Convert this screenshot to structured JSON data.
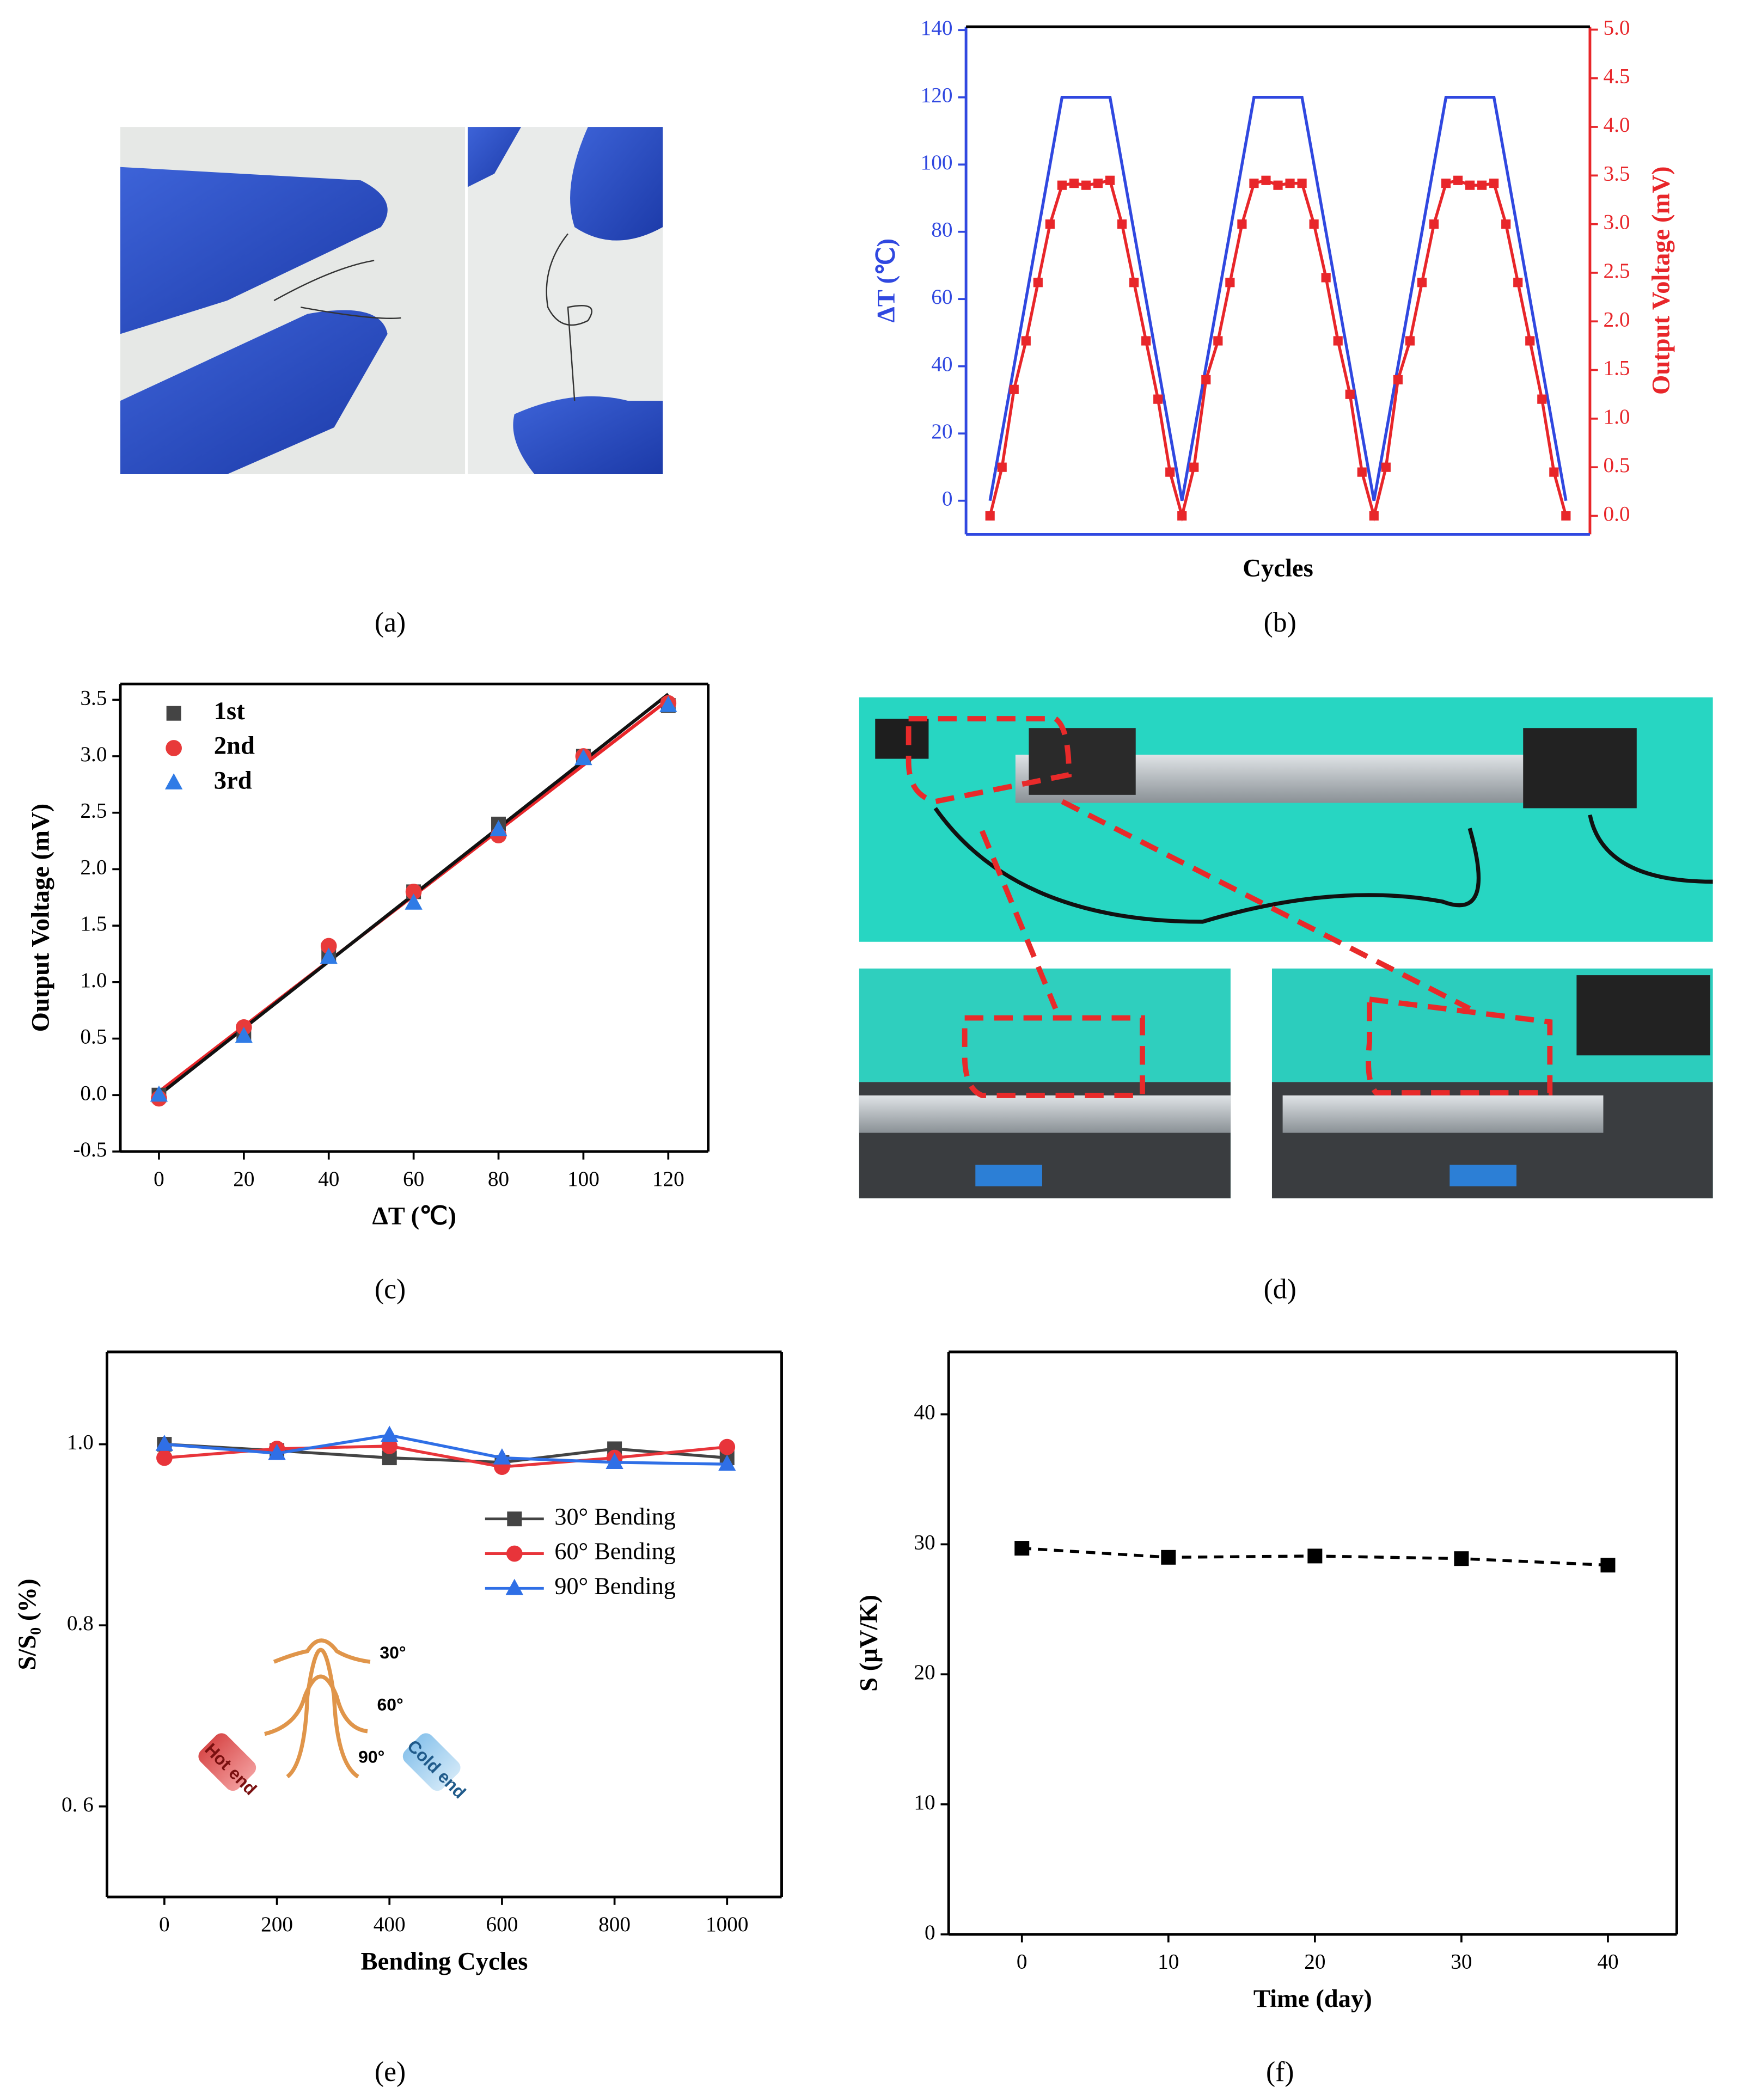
{
  "panel_labels": [
    "(a)",
    "(b)",
    "(c)",
    "(d)",
    "(e)",
    "(f)"
  ],
  "chart_data": [
    {
      "type": "line",
      "xlabel": "Cycles",
      "ylabel": "ΔT (℃)",
      "y2label": "Output Voltage (mV)",
      "xlim": [
        -2,
        50
      ],
      "ylim": [
        -10,
        141
      ],
      "y2lim": [
        -0.19,
        5.03
      ],
      "yticks": [
        0,
        20,
        40,
        60,
        80,
        100,
        120,
        140
      ],
      "y2ticks": [
        {
          "value": 0,
          "label": "0.0"
        },
        0.5,
        {
          "value": 1,
          "label": "1.0"
        },
        1.5,
        {
          "value": 2,
          "label": "2.0"
        },
        2.5,
        {
          "value": 3,
          "label": "3.0"
        },
        3.5,
        {
          "value": 4,
          "label": "4.0"
        },
        4.5,
        {
          "value": 5,
          "label": "5.0"
        }
      ],
      "ycolor": "#3048e0",
      "y2color": "#e8262a",
      "series": [
        {
          "color": "#3048e0",
          "x": [
            0,
            6,
            10,
            16,
            22,
            26,
            32,
            38,
            42,
            48
          ],
          "values": [
            0,
            120,
            120,
            0,
            120,
            120,
            0,
            120,
            120,
            0
          ]
        },
        {
          "color": "#e8262a",
          "axis": "y2",
          "marker": "square",
          "x": [
            0,
            1,
            2,
            3,
            4,
            5,
            6,
            7,
            8,
            9,
            10,
            11,
            12,
            13,
            14,
            15,
            16,
            17,
            18,
            19,
            20,
            21,
            22,
            23,
            24,
            25,
            26,
            27,
            28,
            29,
            30,
            31,
            32,
            33,
            34,
            35,
            36,
            37,
            38,
            39,
            40,
            41,
            42,
            43,
            44,
            45,
            46,
            47,
            48
          ],
          "values": [
            0,
            0.5,
            1.3,
            1.8,
            2.4,
            3.0,
            3.4,
            3.42,
            3.4,
            3.42,
            3.45,
            3.0,
            2.4,
            1.8,
            1.2,
            0.45,
            0,
            0.5,
            1.4,
            1.8,
            2.4,
            3.0,
            3.42,
            3.45,
            3.4,
            3.42,
            3.42,
            3.0,
            2.45,
            1.8,
            1.25,
            0.45,
            0,
            0.5,
            1.4,
            1.8,
            2.4,
            3.0,
            3.42,
            3.45,
            3.4,
            3.4,
            3.42,
            3.0,
            2.4,
            1.8,
            1.2,
            0.45,
            0
          ]
        }
      ]
    },
    {
      "type": "scatter",
      "xlabel": "ΔT (℃)",
      "ylabel": "Output Voltage (mV)",
      "xlim": [
        -9.1,
        129.4
      ],
      "ylim": [
        -0.5,
        3.64
      ],
      "xticks": [
        0,
        20,
        40,
        60,
        80,
        100,
        120
      ],
      "yticks": [
        -0.5,
        {
          "value": 0,
          "label": "0.0"
        },
        0.5,
        {
          "value": 1,
          "label": "1.0"
        },
        1.5,
        {
          "value": 2,
          "label": "2.0"
        },
        2.5,
        {
          "value": 3,
          "label": "3.0"
        },
        3.5
      ],
      "legend": "upper left",
      "series": [
        {
          "name": "1st",
          "color": "#444444",
          "marker": "square",
          "x": [
            0,
            20,
            40,
            60,
            80,
            100,
            120
          ],
          "values": [
            0,
            0.55,
            1.25,
            1.8,
            2.4,
            3.0,
            3.45
          ]
        },
        {
          "name": "2nd",
          "color": "#e83a3a",
          "marker": "circle",
          "x": [
            0,
            20,
            40,
            60,
            80,
            100,
            120
          ],
          "values": [
            -0.03,
            0.6,
            1.32,
            1.8,
            2.3,
            3.0,
            3.47
          ]
        },
        {
          "name": "3rd",
          "color": "#2f7be6",
          "marker": "triangle",
          "x": [
            0,
            20,
            40,
            60,
            80,
            100,
            120
          ],
          "values": [
            0,
            0.52,
            1.22,
            1.7,
            2.35,
            2.98,
            3.45
          ]
        }
      ],
      "fit_lines": [
        {
          "color": "#e8262a",
          "x": [
            0,
            120
          ],
          "values": [
            0.03,
            3.5
          ]
        },
        {
          "color": "#111111",
          "x": [
            0,
            120
          ],
          "values": [
            0,
            3.55
          ]
        }
      ]
    },
    {
      "type": "line",
      "xlabel": "Bending Cycles",
      "ylabel": "S/S₀ (%)",
      "xlim": [
        -102,
        1097
      ],
      "ylim": [
        0.5,
        1.102
      ],
      "xticks": [
        0,
        200,
        400,
        600,
        800,
        1000
      ],
      "yticks": [
        {
          "value": 0.6,
          "label": "0. 6"
        },
        0.8,
        {
          "value": 1,
          "label": "1.0"
        }
      ],
      "legend": "center right",
      "annotations": [
        "30°",
        "60°",
        "90°",
        "Hot end",
        "Cold end"
      ],
      "series": [
        {
          "name": "30° Bending",
          "color": "#444444",
          "marker": "square",
          "x": [
            0,
            200,
            400,
            600,
            800,
            1000
          ],
          "values": [
            1.0,
            0.993,
            0.985,
            0.98,
            0.995,
            0.985
          ]
        },
        {
          "name": "60° Bending",
          "color": "#e8343a",
          "marker": "circle",
          "x": [
            0,
            200,
            400,
            600,
            800,
            1000
          ],
          "values": [
            0.985,
            0.995,
            0.998,
            0.975,
            0.985,
            0.997
          ]
        },
        {
          "name": "90° Bending",
          "color": "#2f6fe6",
          "marker": "triangle",
          "x": [
            0,
            200,
            400,
            600,
            800,
            1000
          ],
          "values": [
            1.0,
            0.99,
            1.01,
            0.985,
            0.98,
            0.978
          ]
        }
      ]
    },
    {
      "type": "line",
      "xlabel": "Time (day)",
      "ylabel": "S (μV/K)",
      "xlim": [
        -5,
        44.7
      ],
      "ylim": [
        0,
        44.8
      ],
      "xticks": [
        0,
        10,
        20,
        30,
        40
      ],
      "yticks": [
        0,
        10,
        20,
        30,
        40
      ],
      "series": [
        {
          "color": "#000000",
          "marker": "square",
          "line_style": "dashed",
          "x": [
            0,
            10,
            20,
            30,
            40
          ],
          "values": [
            29.7,
            29.0,
            29.1,
            28.9,
            28.4
          ]
        }
      ]
    }
  ]
}
